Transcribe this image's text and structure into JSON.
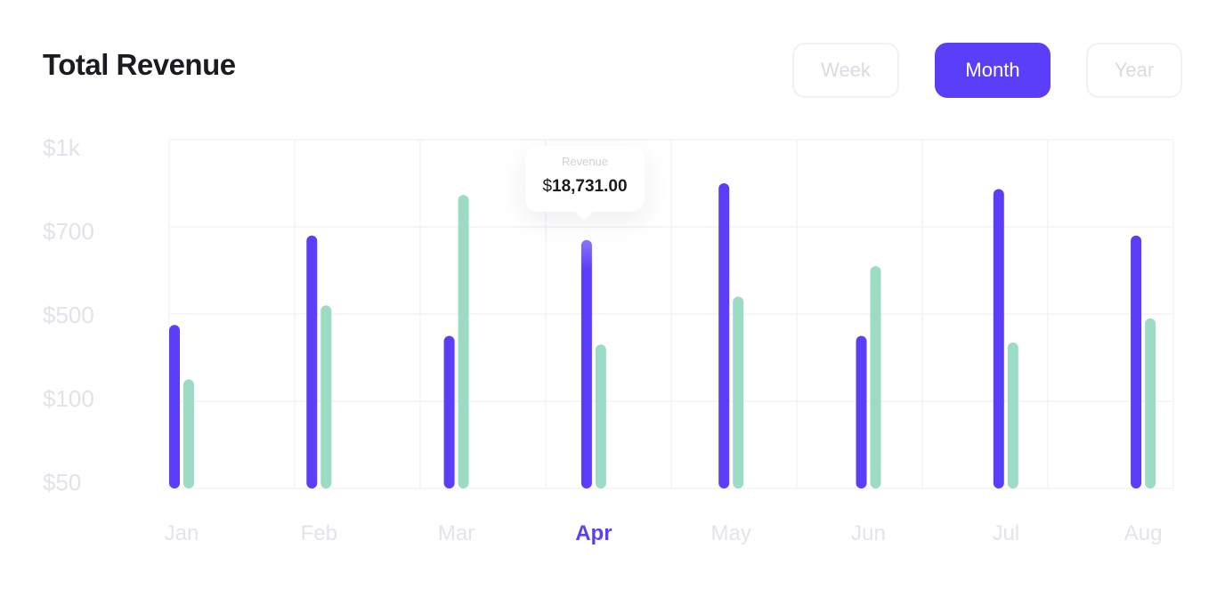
{
  "header": {
    "title": "Total Revenue"
  },
  "toggle": {
    "options": [
      "Week",
      "Month",
      "Year"
    ],
    "selected": "Month"
  },
  "tooltip": {
    "label": "Revenue",
    "currency": "$",
    "value": "18,731.00"
  },
  "colors": {
    "primary": "#5b3ff8",
    "secondary": "#9ddcc4",
    "grid": "#f3f3f6"
  },
  "chart_data": {
    "type": "bar",
    "categories": [
      "Jan",
      "Feb",
      "Mar",
      "Apr",
      "May",
      "Jun",
      "Jul",
      "Aug"
    ],
    "selected_category": "Apr",
    "y_tick_labels": [
      "$1k",
      "$700",
      "$500",
      "$100",
      "$50"
    ],
    "y_scale": "ordinal ticks (unevenly spaced values, evenly spaced gridlines)",
    "series": [
      {
        "values": [
          450,
          680,
          400,
          670,
          850,
          400,
          830,
          680
        ]
      },
      {
        "values": [
          200,
          520,
          810,
          360,
          540,
          610,
          370,
          480
        ]
      }
    ],
    "grid": true
  }
}
